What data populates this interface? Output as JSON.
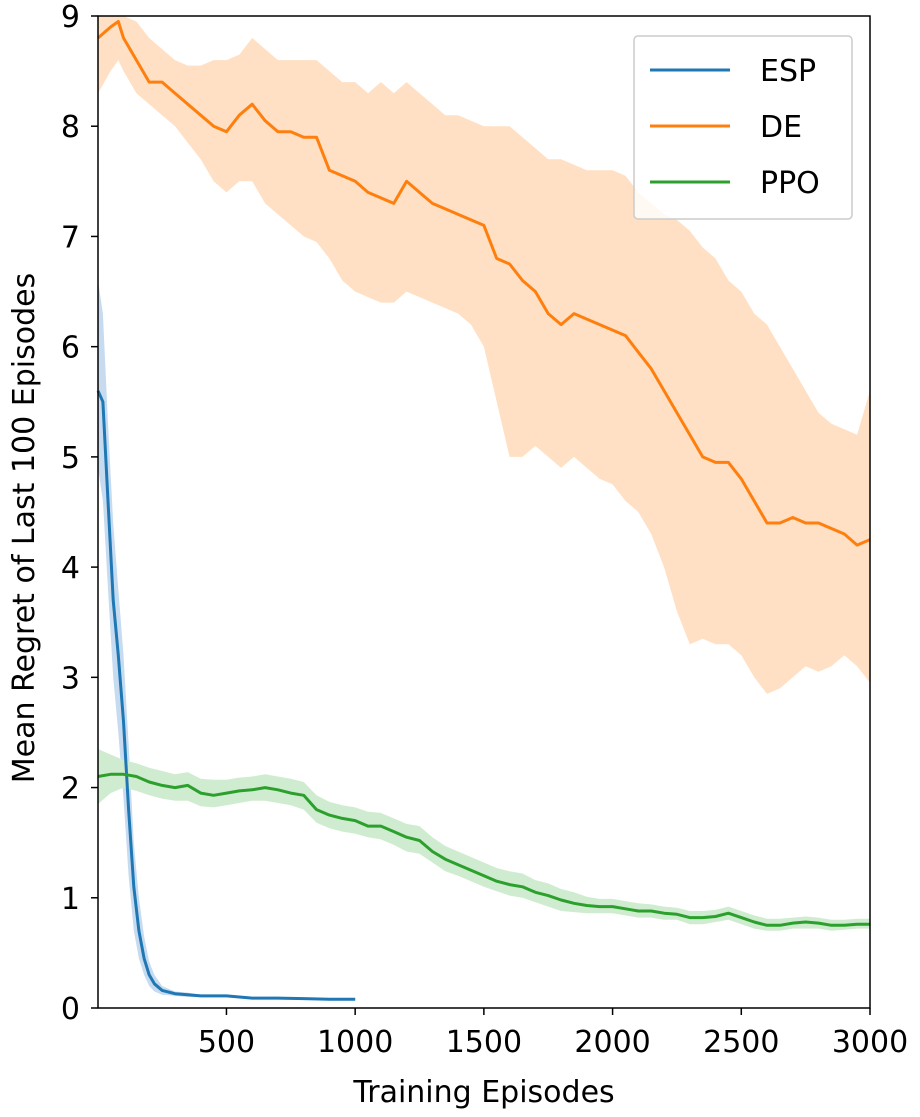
{
  "chart_data": {
    "type": "line",
    "title": "",
    "xlabel": "Training Episodes",
    "ylabel": "Mean Regret of Last 100 Episodes",
    "xlim": [
      1,
      3000
    ],
    "ylim": [
      0,
      9
    ],
    "xticks": [
      500,
      1000,
      1500,
      2000,
      2500,
      3000
    ],
    "yticks": [
      0,
      1,
      2,
      3,
      4,
      5,
      6,
      7,
      8,
      9
    ],
    "grid": false,
    "legend_position": "top-right",
    "series": [
      {
        "name": "ESP",
        "color": "#1f77b4",
        "band_color": "#c6dbef",
        "x": [
          1,
          20,
          40,
          60,
          80,
          100,
          120,
          140,
          160,
          180,
          200,
          220,
          250,
          300,
          350,
          400,
          500,
          600,
          700,
          800,
          900,
          1000
        ],
        "y": [
          5.6,
          5.5,
          4.6,
          3.7,
          3.2,
          2.6,
          1.8,
          1.1,
          0.7,
          0.45,
          0.3,
          0.22,
          0.16,
          0.13,
          0.12,
          0.11,
          0.11,
          0.09,
          0.09,
          0.085,
          0.08,
          0.08
        ],
        "lower": [
          4.9,
          4.6,
          3.8,
          3.0,
          2.5,
          1.9,
          1.2,
          0.7,
          0.45,
          0.3,
          0.2,
          0.15,
          0.12,
          0.11,
          0.1,
          0.1,
          0.1,
          0.08,
          0.08,
          0.075,
          0.07,
          0.07
        ],
        "upper": [
          6.6,
          6.3,
          5.3,
          4.4,
          3.8,
          3.2,
          2.4,
          1.5,
          1.0,
          0.65,
          0.42,
          0.3,
          0.2,
          0.15,
          0.14,
          0.12,
          0.12,
          0.1,
          0.1,
          0.095,
          0.09,
          0.09
        ]
      },
      {
        "name": "DE",
        "color": "#ff7f0e",
        "band_color": "#ffe0c4",
        "x": [
          1,
          50,
          80,
          100,
          150,
          200,
          250,
          300,
          350,
          400,
          450,
          500,
          550,
          600,
          650,
          700,
          750,
          800,
          850,
          900,
          950,
          1000,
          1050,
          1100,
          1150,
          1200,
          1250,
          1300,
          1350,
          1400,
          1450,
          1500,
          1550,
          1600,
          1650,
          1700,
          1750,
          1800,
          1850,
          1900,
          1950,
          2000,
          2050,
          2100,
          2150,
          2200,
          2250,
          2300,
          2350,
          2400,
          2450,
          2500,
          2550,
          2600,
          2650,
          2700,
          2750,
          2800,
          2850,
          2900,
          2950,
          3000
        ],
        "y": [
          8.8,
          8.9,
          8.95,
          8.8,
          8.6,
          8.4,
          8.4,
          8.3,
          8.2,
          8.1,
          8.0,
          7.95,
          8.1,
          8.2,
          8.05,
          7.95,
          7.95,
          7.9,
          7.9,
          7.6,
          7.55,
          7.5,
          7.4,
          7.35,
          7.3,
          7.5,
          7.4,
          7.3,
          7.25,
          7.2,
          7.15,
          7.1,
          6.8,
          6.75,
          6.6,
          6.5,
          6.3,
          6.2,
          6.3,
          6.25,
          6.2,
          6.15,
          6.1,
          5.95,
          5.8,
          5.6,
          5.4,
          5.2,
          5.0,
          4.95,
          4.95,
          4.8,
          4.6,
          4.4,
          4.4,
          4.45,
          4.4,
          4.4,
          4.35,
          4.3,
          4.2,
          4.25
        ],
        "lower": [
          8.3,
          8.5,
          8.6,
          8.5,
          8.3,
          8.2,
          8.1,
          8.0,
          7.85,
          7.7,
          7.5,
          7.4,
          7.5,
          7.5,
          7.3,
          7.2,
          7.1,
          7.0,
          6.95,
          6.8,
          6.6,
          6.5,
          6.45,
          6.4,
          6.4,
          6.5,
          6.45,
          6.4,
          6.35,
          6.3,
          6.2,
          6.0,
          5.5,
          5.0,
          5.0,
          5.1,
          5.0,
          4.9,
          5.0,
          4.9,
          4.8,
          4.75,
          4.6,
          4.5,
          4.3,
          4.0,
          3.6,
          3.3,
          3.35,
          3.3,
          3.3,
          3.2,
          3.0,
          2.85,
          2.9,
          3.0,
          3.1,
          3.05,
          3.1,
          3.2,
          3.1,
          2.95
        ],
        "upper": [
          9.0,
          9.0,
          9.0,
          9.0,
          8.95,
          8.8,
          8.7,
          8.6,
          8.55,
          8.55,
          8.6,
          8.6,
          8.65,
          8.8,
          8.7,
          8.6,
          8.6,
          8.6,
          8.6,
          8.5,
          8.4,
          8.4,
          8.3,
          8.4,
          8.3,
          8.4,
          8.3,
          8.2,
          8.1,
          8.1,
          8.05,
          8.0,
          8.0,
          8.0,
          7.9,
          7.8,
          7.7,
          7.7,
          7.65,
          7.6,
          7.6,
          7.6,
          7.55,
          7.4,
          7.3,
          7.2,
          7.15,
          7.05,
          6.9,
          6.8,
          6.6,
          6.5,
          6.3,
          6.2,
          6.0,
          5.8,
          5.6,
          5.4,
          5.3,
          5.25,
          5.2,
          5.6
        ]
      },
      {
        "name": "PPO",
        "color": "#2ca02c",
        "band_color": "#d0ecd0",
        "x": [
          1,
          50,
          100,
          150,
          200,
          250,
          300,
          350,
          400,
          450,
          500,
          550,
          600,
          650,
          700,
          750,
          800,
          850,
          900,
          950,
          1000,
          1050,
          1100,
          1150,
          1200,
          1250,
          1300,
          1350,
          1400,
          1450,
          1500,
          1550,
          1600,
          1650,
          1700,
          1750,
          1800,
          1850,
          1900,
          1950,
          2000,
          2050,
          2100,
          2150,
          2200,
          2250,
          2300,
          2350,
          2400,
          2450,
          2500,
          2550,
          2600,
          2650,
          2700,
          2750,
          2800,
          2850,
          2900,
          2950,
          3000
        ],
        "y": [
          2.1,
          2.12,
          2.12,
          2.1,
          2.05,
          2.02,
          2.0,
          2.02,
          1.95,
          1.93,
          1.95,
          1.97,
          1.98,
          2.0,
          1.98,
          1.95,
          1.93,
          1.8,
          1.75,
          1.72,
          1.7,
          1.65,
          1.65,
          1.6,
          1.55,
          1.52,
          1.42,
          1.35,
          1.3,
          1.25,
          1.2,
          1.15,
          1.12,
          1.1,
          1.05,
          1.02,
          0.98,
          0.95,
          0.93,
          0.92,
          0.92,
          0.9,
          0.88,
          0.88,
          0.86,
          0.85,
          0.82,
          0.82,
          0.83,
          0.86,
          0.82,
          0.78,
          0.75,
          0.75,
          0.77,
          0.78,
          0.77,
          0.75,
          0.75,
          0.76,
          0.76
        ],
        "lower": [
          1.85,
          1.95,
          2.0,
          1.97,
          1.93,
          1.9,
          1.88,
          1.88,
          1.83,
          1.82,
          1.84,
          1.86,
          1.88,
          1.88,
          1.86,
          1.84,
          1.8,
          1.68,
          1.63,
          1.6,
          1.58,
          1.55,
          1.53,
          1.48,
          1.42,
          1.4,
          1.32,
          1.24,
          1.2,
          1.15,
          1.1,
          1.06,
          1.02,
          1.0,
          0.96,
          0.92,
          0.88,
          0.87,
          0.86,
          0.86,
          0.86,
          0.84,
          0.82,
          0.82,
          0.8,
          0.8,
          0.76,
          0.76,
          0.78,
          0.8,
          0.76,
          0.72,
          0.7,
          0.7,
          0.72,
          0.72,
          0.72,
          0.7,
          0.71,
          0.72,
          0.72
        ],
        "upper": [
          2.35,
          2.3,
          2.25,
          2.22,
          2.18,
          2.15,
          2.12,
          2.14,
          2.08,
          2.07,
          2.07,
          2.09,
          2.1,
          2.12,
          2.1,
          2.08,
          2.05,
          1.93,
          1.87,
          1.84,
          1.82,
          1.78,
          1.77,
          1.72,
          1.67,
          1.65,
          1.55,
          1.47,
          1.42,
          1.37,
          1.32,
          1.27,
          1.24,
          1.22,
          1.16,
          1.13,
          1.08,
          1.05,
          1.01,
          0.99,
          0.99,
          0.97,
          0.95,
          0.94,
          0.92,
          0.91,
          0.88,
          0.88,
          0.89,
          0.92,
          0.88,
          0.84,
          0.81,
          0.81,
          0.82,
          0.83,
          0.82,
          0.8,
          0.8,
          0.81,
          0.81
        ]
      }
    ]
  }
}
